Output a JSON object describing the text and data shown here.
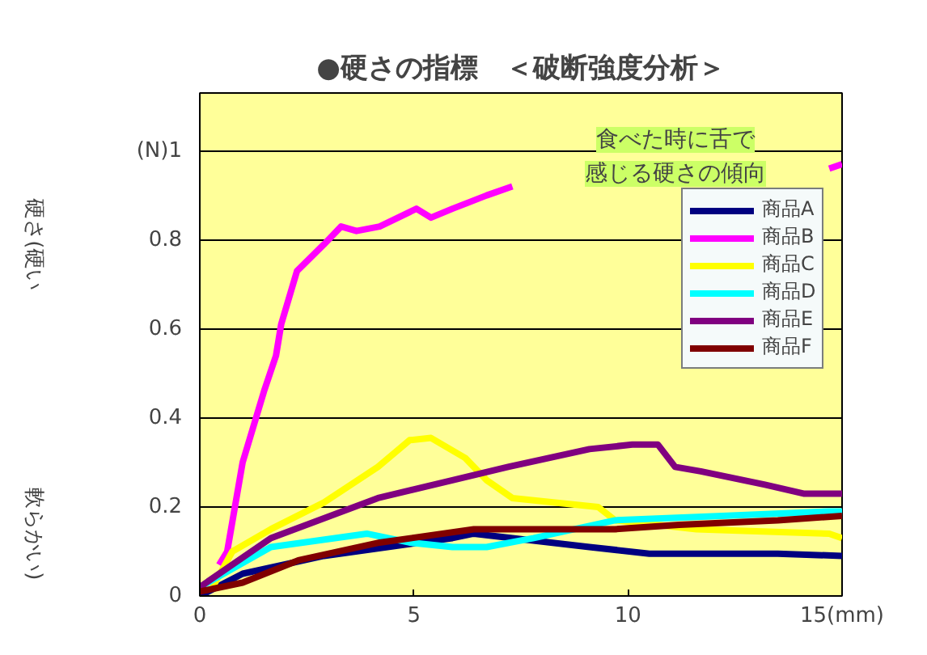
{
  "chart_data": {
    "type": "line",
    "title": "●硬さの指標　＜破断強度分析＞",
    "xlim": [
      0,
      15
    ],
    "ylim": [
      0,
      1.13
    ],
    "xticks": [
      0,
      5,
      10,
      {
        "value": 15,
        "label": "15(mm)"
      }
    ],
    "yticks": [
      0,
      0.2,
      0.4,
      0.6,
      0.8,
      {
        "value": 1,
        "label": "(N)1"
      }
    ],
    "grid": "y",
    "legend": "right",
    "annotations": [
      "食べた時に舌で感じる硬さの傾向",
      "硬さ(硬い",
      "軟らかい)"
    ],
    "series": [
      {
        "name": "商品A",
        "color": "#000080",
        "x": [
          0,
          1.0,
          2.9,
          5.9,
          6.4,
          8.2,
          9.1,
          10.5,
          13.5,
          15
        ],
        "values": [
          0,
          0.05,
          0.09,
          0.13,
          0.14,
          0.12,
          0.11,
          0.095,
          0.095,
          0.09
        ]
      },
      {
        "name": "商品B",
        "color": "#ff00ff",
        "x": [
          0.45,
          0.64,
          1.0,
          1.5,
          1.78,
          1.9,
          2.27,
          2.9,
          3.3,
          3.66,
          4.2,
          5.06,
          5.4,
          5.9,
          6.7,
          7.3,
          7.4,
          14.7,
          15
        ],
        "values": [
          0.07,
          0.1,
          0.3,
          0.46,
          0.54,
          0.61,
          0.73,
          0.79,
          0.83,
          0.82,
          0.83,
          0.87,
          0.85,
          0.87,
          0.9,
          0.92,
          null,
          0.96,
          0.97
        ]
      },
      {
        "name": "商品C",
        "color": "#ffff00",
        "x": [
          0.3,
          0.76,
          1.66,
          2.9,
          4.16,
          4.9,
          5.4,
          6.2,
          6.7,
          7.3,
          9.3,
          9.7,
          11.6,
          14.7,
          15
        ],
        "values": [
          0.02,
          0.1,
          0.15,
          0.21,
          0.29,
          0.35,
          0.355,
          0.31,
          0.26,
          0.22,
          0.2,
          0.17,
          0.15,
          0.14,
          0.13
        ]
      },
      {
        "name": "商品D",
        "color": "#00ffff",
        "x": [
          0,
          1.66,
          3.9,
          4.9,
          5.9,
          6.7,
          7.8,
          9.7,
          12.2,
          14.7,
          15
        ],
        "values": [
          0.02,
          0.11,
          0.14,
          0.12,
          0.11,
          0.11,
          0.13,
          0.17,
          0.18,
          0.19,
          0.19
        ]
      },
      {
        "name": "商品E",
        "color": "#800080",
        "x": [
          0,
          1.66,
          4.16,
          5.9,
          7.2,
          9.1,
          10.1,
          10.7,
          11.1,
          11.7,
          13.2,
          14.1,
          15
        ],
        "values": [
          0.02,
          0.13,
          0.22,
          0.26,
          0.29,
          0.33,
          0.34,
          0.34,
          0.29,
          0.28,
          0.25,
          0.23,
          0.23
        ]
      },
      {
        "name": "商品F",
        "color": "#800000",
        "x": [
          0,
          1.0,
          2.3,
          4.2,
          6.4,
          9.7,
          11.2,
          13.5,
          15
        ],
        "values": [
          0.01,
          0.03,
          0.08,
          0.12,
          0.15,
          0.15,
          0.16,
          0.17,
          0.18
        ]
      }
    ]
  }
}
